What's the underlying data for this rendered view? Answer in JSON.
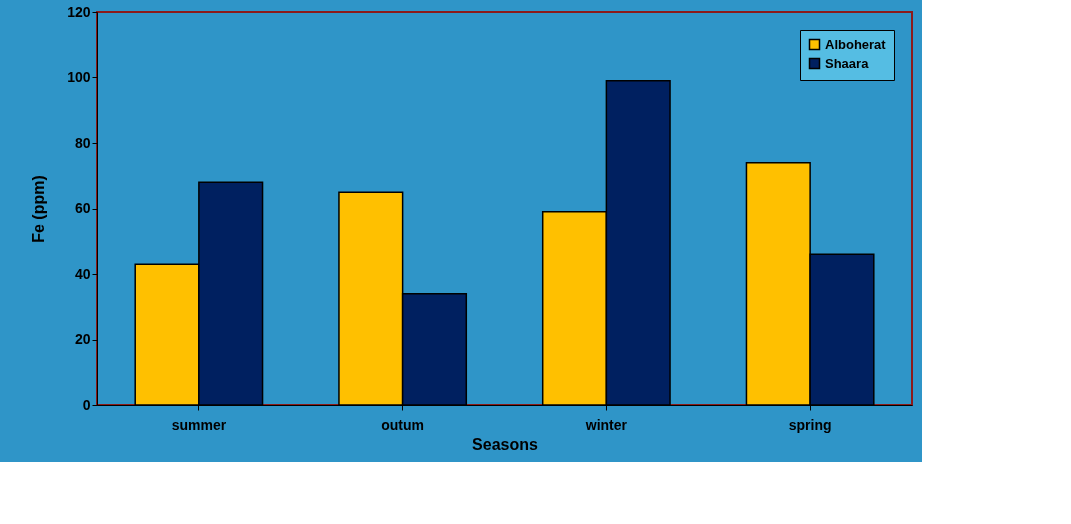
{
  "chart_data": {
    "type": "bar",
    "xlabel": "Seasons",
    "ylabel": "Fe  (ppm)",
    "categories": [
      "summer",
      "outum",
      "winter",
      "spring"
    ],
    "series": [
      {
        "name": "Alboherat",
        "color": "#ffc000",
        "values": [
          43,
          65,
          59,
          74
        ]
      },
      {
        "name": "Shaara",
        "color": "#002060",
        "values": [
          68,
          34,
          99,
          46
        ]
      }
    ],
    "ylim": [
      0,
      120
    ],
    "yticks": [
      0,
      20,
      40,
      60,
      80,
      100,
      120
    ],
    "grid": false,
    "legend": "top right"
  }
}
